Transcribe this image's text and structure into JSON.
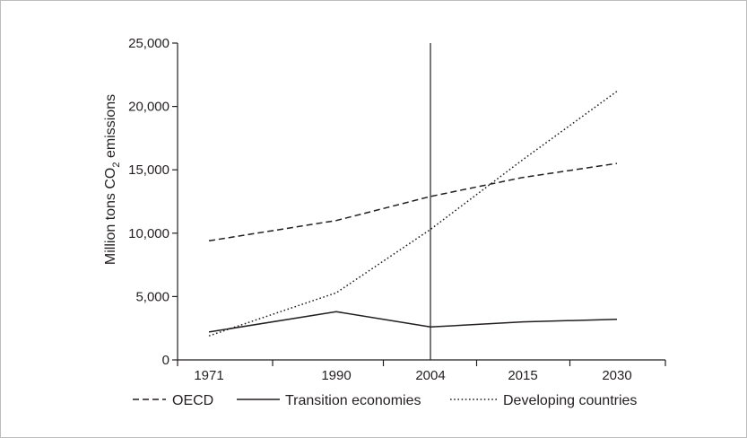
{
  "chart_data": {
    "type": "line",
    "title": "",
    "xlabel": "",
    "ylabel": "Million tons CO",
    "ylabel_subscript": "2",
    "ylabel_suffix": " emissions",
    "categories": [
      "1971",
      "1990",
      "2004",
      "2015",
      "2030"
    ],
    "x": [
      1971,
      1990,
      2004,
      2015,
      2030
    ],
    "ylim": [
      0,
      25000
    ],
    "yticks": [
      0,
      5000,
      10000,
      15000,
      20000,
      25000
    ],
    "ytick_labels": [
      "0",
      "5,000",
      "10,000",
      "15,000",
      "20,000",
      "25,000"
    ],
    "vertical_marker_x": 2004,
    "grid": false,
    "legend_placement": "bottom",
    "series": [
      {
        "name": "OECD",
        "style": "dashed",
        "color": "#231f20",
        "values": [
          9400,
          11000,
          12900,
          14400,
          15500
        ]
      },
      {
        "name": "Transition economies",
        "style": "solid",
        "color": "#231f20",
        "values": [
          2200,
          3800,
          2600,
          3000,
          3200
        ]
      },
      {
        "name": "Developing countries",
        "style": "dotted",
        "color": "#231f20",
        "values": [
          1900,
          5300,
          10300,
          15800,
          21200
        ]
      }
    ]
  }
}
